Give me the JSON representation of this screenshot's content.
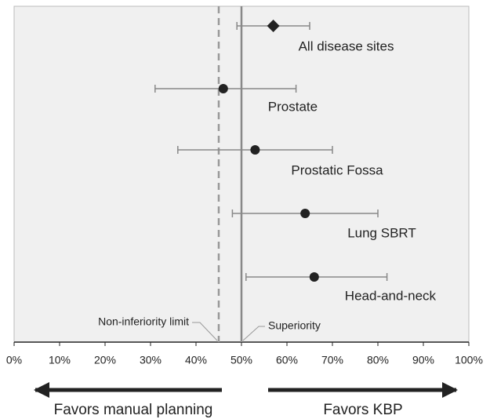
{
  "chart_data": {
    "type": "forest",
    "categories": [
      "All disease sites",
      "Prostate",
      "Prostatic Fossa",
      "Lung SBRT",
      "Head-and-neck"
    ],
    "values": [
      57,
      46,
      53,
      64,
      66
    ],
    "lower": [
      49,
      31,
      36,
      48,
      51
    ],
    "upper": [
      65,
      62,
      70,
      80,
      82
    ],
    "markers": [
      "diamond",
      "circle",
      "circle",
      "circle",
      "circle"
    ],
    "color": "#222222",
    "xlim": [
      0,
      100
    ],
    "xticks": [
      {
        "value": 0,
        "label": "0%"
      },
      {
        "value": 10,
        "label": "10%"
      },
      {
        "value": 20,
        "label": "20%"
      },
      {
        "value": 30,
        "label": "30%"
      },
      {
        "value": 40,
        "label": "40%"
      },
      {
        "value": 50,
        "label": "50%"
      },
      {
        "value": 60,
        "label": "60%"
      },
      {
        "value": 70,
        "label": "70%"
      },
      {
        "value": 80,
        "label": "80%"
      },
      {
        "value": 90,
        "label": "90%"
      },
      {
        "value": 100,
        "label": "100%"
      }
    ],
    "reference_lines": [
      {
        "value": 45,
        "label": "Non-inferiority limit",
        "style": "dashed"
      },
      {
        "value": 50,
        "label": "Superiority",
        "style": "solid"
      }
    ],
    "direction_labels": {
      "left": "Favors manual planning",
      "right": "Favors KBP"
    }
  }
}
